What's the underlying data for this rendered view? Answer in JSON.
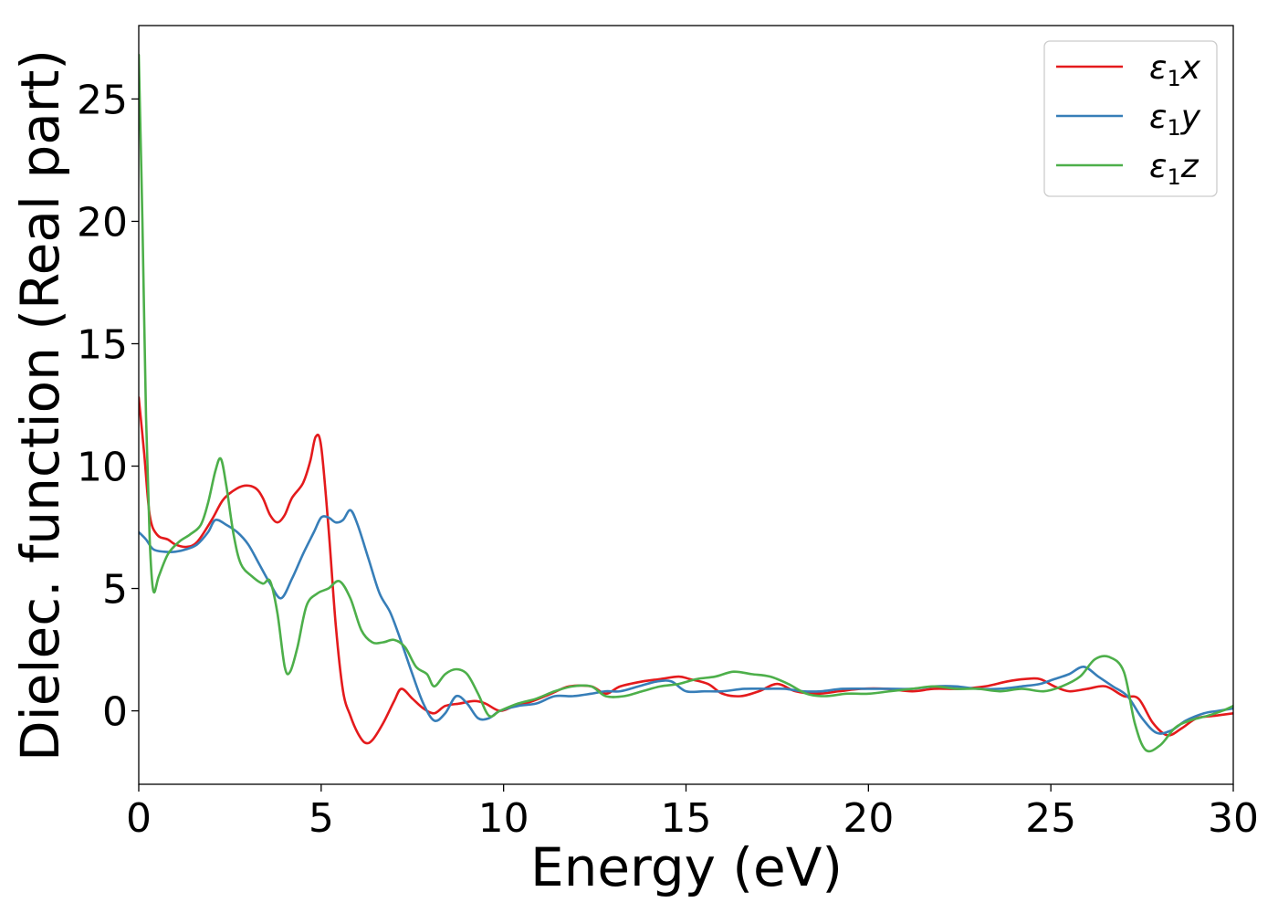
{
  "chart_data": {
    "type": "line",
    "title": "",
    "xlabel": "Energy (eV)",
    "ylabel": "Dielec. function (Real part)",
    "xlim": [
      0,
      30
    ],
    "ylim": [
      -3,
      28
    ],
    "xticks": [
      0,
      5,
      10,
      15,
      20,
      25,
      30
    ],
    "yticks": [
      0,
      5,
      10,
      15,
      20,
      25
    ],
    "grid": false,
    "legend_position": "top-right",
    "series": [
      {
        "name": "ε1x",
        "name_main": "ε",
        "name_sub": "1",
        "name_var": "x",
        "color": "#e41a1c",
        "points": [
          [
            0,
            12.8
          ],
          [
            0.15,
            10.5
          ],
          [
            0.3,
            8.0
          ],
          [
            0.5,
            7.2
          ],
          [
            0.8,
            7.0
          ],
          [
            1.0,
            6.8
          ],
          [
            1.3,
            6.7
          ],
          [
            1.6,
            6.9
          ],
          [
            2.0,
            7.8
          ],
          [
            2.3,
            8.6
          ],
          [
            2.6,
            9.0
          ],
          [
            2.9,
            9.2
          ],
          [
            3.2,
            9.1
          ],
          [
            3.4,
            8.7
          ],
          [
            3.6,
            8.0
          ],
          [
            3.8,
            7.7
          ],
          [
            4.0,
            8.0
          ],
          [
            4.2,
            8.7
          ],
          [
            4.5,
            9.3
          ],
          [
            4.7,
            10.2
          ],
          [
            4.85,
            11.2
          ],
          [
            5.0,
            10.8
          ],
          [
            5.2,
            7.5
          ],
          [
            5.4,
            3.5
          ],
          [
            5.6,
            0.8
          ],
          [
            5.8,
            -0.2
          ],
          [
            6.0,
            -0.9
          ],
          [
            6.2,
            -1.3
          ],
          [
            6.4,
            -1.2
          ],
          [
            6.7,
            -0.5
          ],
          [
            7.0,
            0.4
          ],
          [
            7.2,
            0.9
          ],
          [
            7.5,
            0.5
          ],
          [
            7.8,
            0.1
          ],
          [
            8.1,
            -0.1
          ],
          [
            8.4,
            0.2
          ],
          [
            8.8,
            0.3
          ],
          [
            9.2,
            0.4
          ],
          [
            9.5,
            0.3
          ],
          [
            9.9,
            0.0
          ],
          [
            10.3,
            0.2
          ],
          [
            10.8,
            0.4
          ],
          [
            11.3,
            0.7
          ],
          [
            11.8,
            1.0
          ],
          [
            12.4,
            1.0
          ],
          [
            12.8,
            0.7
          ],
          [
            13.2,
            1.0
          ],
          [
            13.8,
            1.2
          ],
          [
            14.3,
            1.3
          ],
          [
            14.8,
            1.4
          ],
          [
            15.1,
            1.3
          ],
          [
            15.6,
            1.1
          ],
          [
            16.0,
            0.7
          ],
          [
            16.5,
            0.6
          ],
          [
            17.0,
            0.8
          ],
          [
            17.5,
            1.1
          ],
          [
            18.0,
            0.8
          ],
          [
            18.6,
            0.7
          ],
          [
            19.2,
            0.8
          ],
          [
            19.8,
            0.9
          ],
          [
            20.5,
            0.9
          ],
          [
            21.2,
            0.8
          ],
          [
            21.8,
            0.9
          ],
          [
            22.5,
            0.9
          ],
          [
            23.2,
            1.0
          ],
          [
            23.8,
            1.2
          ],
          [
            24.3,
            1.3
          ],
          [
            24.7,
            1.3
          ],
          [
            25.1,
            1.0
          ],
          [
            25.5,
            0.8
          ],
          [
            26.0,
            0.9
          ],
          [
            26.5,
            1.0
          ],
          [
            27.0,
            0.6
          ],
          [
            27.4,
            0.5
          ],
          [
            27.8,
            -0.5
          ],
          [
            28.2,
            -1.0
          ],
          [
            28.6,
            -0.7
          ],
          [
            29.0,
            -0.3
          ],
          [
            29.5,
            -0.2
          ],
          [
            30.0,
            -0.1
          ]
        ]
      },
      {
        "name": "ε1y",
        "name_main": "ε",
        "name_sub": "1",
        "name_var": "y",
        "color": "#377eb8",
        "points": [
          [
            0,
            7.3
          ],
          [
            0.2,
            7.0
          ],
          [
            0.4,
            6.6
          ],
          [
            0.7,
            6.5
          ],
          [
            1.0,
            6.5
          ],
          [
            1.3,
            6.6
          ],
          [
            1.6,
            6.8
          ],
          [
            1.9,
            7.3
          ],
          [
            2.1,
            7.8
          ],
          [
            2.4,
            7.6
          ],
          [
            2.7,
            7.3
          ],
          [
            3.0,
            6.8
          ],
          [
            3.3,
            6.0
          ],
          [
            3.6,
            5.2
          ],
          [
            3.9,
            4.6
          ],
          [
            4.2,
            5.4
          ],
          [
            4.5,
            6.4
          ],
          [
            4.8,
            7.3
          ],
          [
            5.0,
            7.9
          ],
          [
            5.2,
            7.9
          ],
          [
            5.4,
            7.7
          ],
          [
            5.6,
            7.8
          ],
          [
            5.8,
            8.2
          ],
          [
            6.0,
            7.6
          ],
          [
            6.3,
            6.2
          ],
          [
            6.6,
            4.8
          ],
          [
            6.9,
            4.0
          ],
          [
            7.2,
            2.8
          ],
          [
            7.5,
            1.5
          ],
          [
            7.8,
            0.3
          ],
          [
            8.1,
            -0.4
          ],
          [
            8.4,
            -0.1
          ],
          [
            8.7,
            0.6
          ],
          [
            9.0,
            0.3
          ],
          [
            9.3,
            -0.3
          ],
          [
            9.6,
            -0.3
          ],
          [
            9.9,
            0.0
          ],
          [
            10.4,
            0.2
          ],
          [
            10.9,
            0.3
          ],
          [
            11.4,
            0.6
          ],
          [
            11.9,
            0.6
          ],
          [
            12.4,
            0.7
          ],
          [
            12.8,
            0.8
          ],
          [
            13.2,
            0.8
          ],
          [
            13.7,
            1.0
          ],
          [
            14.2,
            1.2
          ],
          [
            14.6,
            1.2
          ],
          [
            15.0,
            0.8
          ],
          [
            15.5,
            0.8
          ],
          [
            16.0,
            0.8
          ],
          [
            16.6,
            0.9
          ],
          [
            17.2,
            0.9
          ],
          [
            17.7,
            0.9
          ],
          [
            18.2,
            0.8
          ],
          [
            18.7,
            0.8
          ],
          [
            19.3,
            0.9
          ],
          [
            20.0,
            0.9
          ],
          [
            20.6,
            0.9
          ],
          [
            21.2,
            0.9
          ],
          [
            21.8,
            1.0
          ],
          [
            22.4,
            1.0
          ],
          [
            23.0,
            0.9
          ],
          [
            23.6,
            0.9
          ],
          [
            24.2,
            1.0
          ],
          [
            24.7,
            1.1
          ],
          [
            25.1,
            1.3
          ],
          [
            25.5,
            1.5
          ],
          [
            25.9,
            1.8
          ],
          [
            26.3,
            1.4
          ],
          [
            26.7,
            1.0
          ],
          [
            27.1,
            0.6
          ],
          [
            27.5,
            -0.3
          ],
          [
            27.9,
            -0.9
          ],
          [
            28.3,
            -0.8
          ],
          [
            28.7,
            -0.4
          ],
          [
            29.2,
            -0.1
          ],
          [
            29.6,
            0.0
          ],
          [
            30.0,
            0.1
          ]
        ]
      },
      {
        "name": "ε1z",
        "name_main": "ε",
        "name_sub": "1",
        "name_var": "z",
        "color": "#4daf4a",
        "points": [
          [
            0,
            26.8
          ],
          [
            0.1,
            20.0
          ],
          [
            0.2,
            12.0
          ],
          [
            0.3,
            7.0
          ],
          [
            0.4,
            4.9
          ],
          [
            0.55,
            5.5
          ],
          [
            0.8,
            6.4
          ],
          [
            1.1,
            6.9
          ],
          [
            1.4,
            7.2
          ],
          [
            1.7,
            7.6
          ],
          [
            1.9,
            8.5
          ],
          [
            2.1,
            9.8
          ],
          [
            2.25,
            10.3
          ],
          [
            2.4,
            9.2
          ],
          [
            2.6,
            7.2
          ],
          [
            2.8,
            6.0
          ],
          [
            3.1,
            5.5
          ],
          [
            3.4,
            5.2
          ],
          [
            3.6,
            5.3
          ],
          [
            3.8,
            4.0
          ],
          [
            4.0,
            1.8
          ],
          [
            4.15,
            1.6
          ],
          [
            4.35,
            2.6
          ],
          [
            4.6,
            4.3
          ],
          [
            4.9,
            4.8
          ],
          [
            5.2,
            5.0
          ],
          [
            5.5,
            5.3
          ],
          [
            5.8,
            4.6
          ],
          [
            6.1,
            3.3
          ],
          [
            6.4,
            2.8
          ],
          [
            6.7,
            2.8
          ],
          [
            7.0,
            2.9
          ],
          [
            7.3,
            2.6
          ],
          [
            7.6,
            1.8
          ],
          [
            7.9,
            1.5
          ],
          [
            8.1,
            1.0
          ],
          [
            8.4,
            1.5
          ],
          [
            8.7,
            1.7
          ],
          [
            9.0,
            1.5
          ],
          [
            9.3,
            0.7
          ],
          [
            9.6,
            -0.2
          ],
          [
            9.9,
            0.0
          ],
          [
            10.4,
            0.3
          ],
          [
            10.9,
            0.5
          ],
          [
            11.4,
            0.8
          ],
          [
            11.9,
            1.0
          ],
          [
            12.4,
            1.0
          ],
          [
            12.8,
            0.6
          ],
          [
            13.3,
            0.6
          ],
          [
            13.8,
            0.8
          ],
          [
            14.3,
            1.0
          ],
          [
            14.8,
            1.1
          ],
          [
            15.3,
            1.3
          ],
          [
            15.8,
            1.4
          ],
          [
            16.3,
            1.6
          ],
          [
            16.8,
            1.5
          ],
          [
            17.3,
            1.4
          ],
          [
            17.8,
            1.1
          ],
          [
            18.3,
            0.7
          ],
          [
            18.8,
            0.6
          ],
          [
            19.4,
            0.7
          ],
          [
            20.0,
            0.7
          ],
          [
            20.6,
            0.8
          ],
          [
            21.2,
            0.9
          ],
          [
            21.8,
            1.0
          ],
          [
            22.4,
            0.9
          ],
          [
            23.0,
            0.9
          ],
          [
            23.6,
            0.8
          ],
          [
            24.2,
            0.9
          ],
          [
            24.8,
            0.8
          ],
          [
            25.3,
            1.0
          ],
          [
            25.8,
            1.4
          ],
          [
            26.2,
            2.1
          ],
          [
            26.6,
            2.2
          ],
          [
            27.0,
            1.6
          ],
          [
            27.3,
            -0.5
          ],
          [
            27.6,
            -1.6
          ],
          [
            28.0,
            -1.4
          ],
          [
            28.4,
            -0.7
          ],
          [
            28.8,
            -0.4
          ],
          [
            29.3,
            -0.2
          ],
          [
            29.7,
            0.0
          ],
          [
            30.0,
            0.2
          ]
        ]
      }
    ]
  }
}
